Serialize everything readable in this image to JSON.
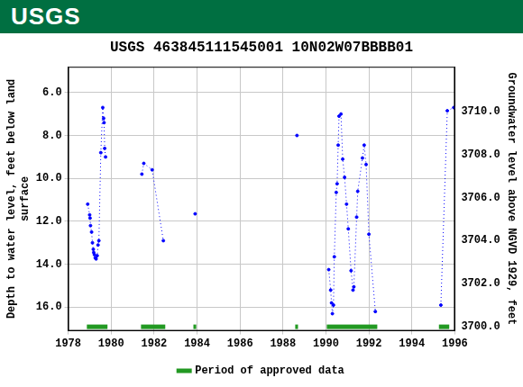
{
  "banner": {
    "text": "USGS"
  },
  "chart_data": {
    "type": "line",
    "title": "USGS 463845111545001 10N02W07BBBB01",
    "xlim": [
      1978,
      1996
    ],
    "xticks": [
      1978,
      1980,
      1982,
      1984,
      1986,
      1988,
      1990,
      1992,
      1994,
      1996
    ],
    "ylabel": [
      "Depth to water level, feet below land",
      "surface"
    ],
    "ylim": [
      17.1,
      4.8
    ],
    "yticks": [
      {
        "value": 6,
        "label": "6.0"
      },
      {
        "value": 8,
        "label": "8.0"
      },
      {
        "value": 10,
        "label": "10.0"
      },
      {
        "value": 12,
        "label": "12.0"
      },
      {
        "value": 14,
        "label": "14.0"
      },
      {
        "value": 16,
        "label": "16.0"
      }
    ],
    "y2label": "Groundwater level above NGVD 1929, feet",
    "y2lim": [
      3699.8,
      3712.1
    ],
    "y2ticks": [
      {
        "value": 3700,
        "label": "3700.0"
      },
      {
        "value": 3702,
        "label": "3702.0"
      },
      {
        "value": 3704,
        "label": "3704.0"
      },
      {
        "value": 3706,
        "label": "3706.0"
      },
      {
        "value": 3708,
        "label": "3708.0"
      },
      {
        "value": 3710,
        "label": "3710.0"
      }
    ],
    "grid": true,
    "legend": "bottom",
    "series": [
      {
        "color": "#0000ff",
        "marker": "point",
        "line_style": "dotted",
        "x": [
          1978.91,
          1979.0,
          1979.02,
          1979.04,
          1979.09,
          1979.13,
          1979.17,
          1979.19,
          1979.22,
          1979.26,
          1979.3,
          1979.35,
          1979.39,
          1979.43,
          1979.52,
          1979.61,
          1979.65,
          1979.67,
          1979.7,
          1979.74,
          null,
          1981.43,
          1981.52,
          1981.91,
          1982.43,
          null,
          1983.91,
          null,
          1988.65,
          null,
          1990.13,
          1990.22,
          1990.26,
          1990.3,
          1990.35,
          1990.39,
          1990.48,
          1990.52,
          1990.57,
          1990.61,
          1990.7,
          1990.78,
          1990.87,
          1990.96,
          1991.04,
          1991.17,
          1991.26,
          1991.3,
          1991.43,
          1991.48,
          1991.7,
          1991.78,
          1991.87,
          1992.0,
          1992.3,
          null,
          1995.35,
          1995.65,
          1995.95
        ],
        "values": [
          11.2,
          11.7,
          11.85,
          12.2,
          12.5,
          13.0,
          13.3,
          13.45,
          13.55,
          13.7,
          13.75,
          13.6,
          13.1,
          12.9,
          8.8,
          6.7,
          7.2,
          7.4,
          8.6,
          9.0,
          null,
          9.8,
          9.3,
          9.6,
          12.9,
          null,
          11.65,
          null,
          8.0,
          null,
          14.25,
          15.2,
          15.8,
          16.3,
          15.9,
          13.65,
          10.65,
          10.25,
          8.45,
          7.1,
          7.0,
          9.1,
          9.95,
          11.2,
          12.35,
          14.3,
          15.2,
          15.05,
          11.8,
          10.6,
          9.05,
          8.45,
          9.35,
          12.6,
          16.2,
          null,
          15.9,
          6.85,
          6.7
        ]
      },
      {
        "name": "Period of approved data",
        "color": "#229922",
        "periods": [
          [
            1978.87,
            1979.83
          ],
          [
            1981.39,
            1982.52
          ],
          [
            1983.83,
            1983.96
          ],
          [
            1988.57,
            1988.7
          ],
          [
            1990.04,
            1992.39
          ],
          [
            1995.26,
            1995.74
          ]
        ]
      }
    ]
  }
}
